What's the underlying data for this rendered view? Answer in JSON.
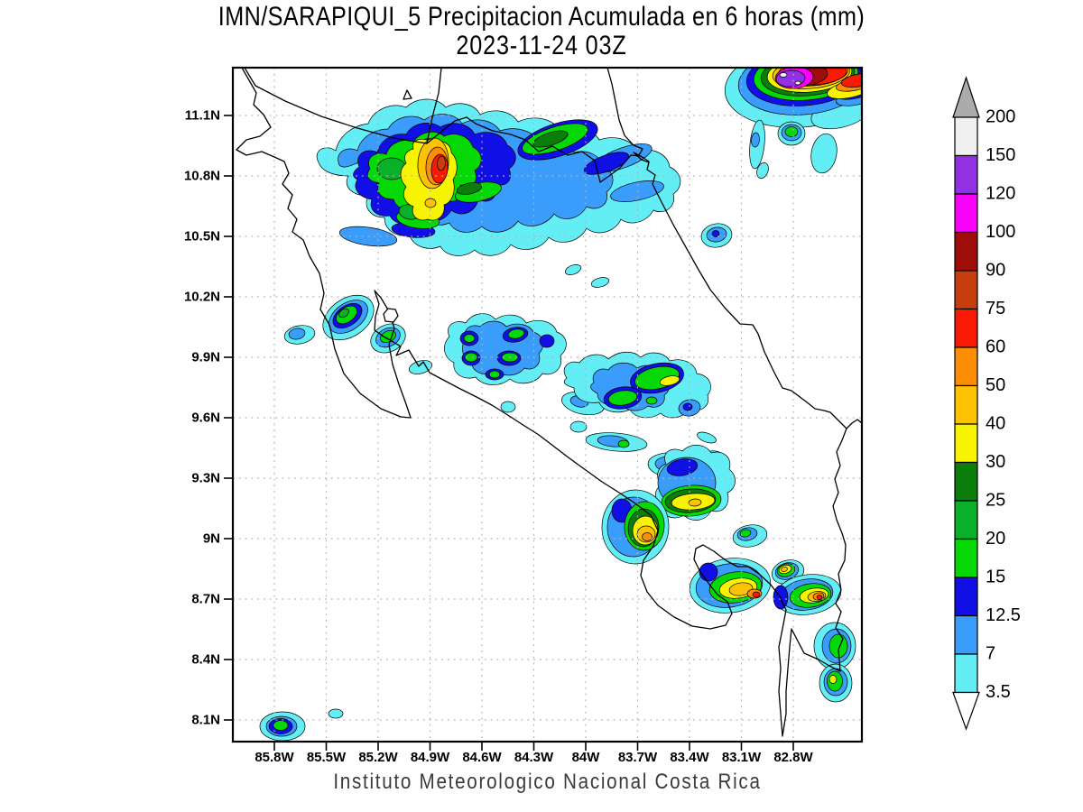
{
  "title": {
    "line1": "IMN/SARAPIQUI_5 Precipitacion Acumulada en 6 horas (mm)",
    "line2": "2023-11-24 03Z"
  },
  "caption": "Instituto Meteorologico Nacional Costa Rica",
  "axes": {
    "lat_labels_top_to_bottom": [
      "11.1N",
      "10.8N",
      "10.5N",
      "10.2N",
      "9.9N",
      "9.6N",
      "9.3N",
      "9N",
      "8.7N",
      "8.4N",
      "8.1N"
    ],
    "lon_labels_left_to_right": [
      "85.8W",
      "85.5W",
      "85.2W",
      "84.9W",
      "84.6W",
      "84.3W",
      "84W",
      "83.7W",
      "83.4W",
      "83.1W",
      "82.8W"
    ]
  },
  "colorbar": {
    "boundary_labels_top_to_bottom": [
      "200",
      "150",
      "120",
      "100",
      "90",
      "75",
      "60",
      "50",
      "40",
      "30",
      "25",
      "20",
      "15",
      "12.5",
      "7",
      "3.5"
    ],
    "segment_colors_top_to_bottom": [
      "#f0f0f0",
      "#9131e3",
      "#f902f9",
      "#9e0d08",
      "#c63d0e",
      "#fa1903",
      "#fd8d03",
      "#fdc303",
      "#f7f303",
      "#0a7d0a",
      "#0aaf2a",
      "#06d806",
      "#0f0fe6",
      "#3b9dfb",
      "#63eef5"
    ],
    "above_max_arrow_color": "#ababab",
    "below_min_arrow_color": "#ffffff"
  },
  "palette_mm_to_color": {
    "3.5": "#63eef5",
    "7": "#3b9dfb",
    "12.5": "#0f0fe6",
    "15": "#06d806",
    "20": "#0aaf2a",
    "25": "#0a7d0a",
    "30": "#f7f303",
    "40": "#fdc303",
    "50": "#fd8d03",
    "60": "#fa1903",
    "75": "#c63d0e",
    "90": "#9e0d08",
    "100": "#f902f9",
    "120": "#9131e3",
    "150": "#f0f0f0"
  },
  "map": {
    "grid_color": "#b3b3b3",
    "outline_color": "#000000",
    "background": "#ffffff"
  },
  "chart_data": {
    "type": "heatmap",
    "subtype": "filled-contour precipitation map",
    "source_label": "IMN/SARAPIQUI_5",
    "variable": "Precipitacion Acumulada en 6 horas (mm)",
    "valid_time": "2023-11-24 03Z",
    "region": "Costa Rica",
    "lon_ticks": [
      "85.8W",
      "85.5W",
      "85.2W",
      "84.9W",
      "84.6W",
      "84.3W",
      "84W",
      "83.7W",
      "83.4W",
      "83.1W",
      "82.8W"
    ],
    "lat_ticks": [
      "11.1N",
      "10.8N",
      "10.5N",
      "10.2N",
      "9.9N",
      "9.6N",
      "9.3N",
      "9N",
      "8.7N",
      "8.4N",
      "8.1N"
    ],
    "contour_levels_mm": [
      3.5,
      7,
      12.5,
      15,
      20,
      25,
      30,
      40,
      50,
      60,
      75,
      90,
      100,
      120,
      150,
      200
    ],
    "grid": "dotted",
    "legend_position": "right vertical colorbar with above/below range arrows",
    "storm_cells": [
      {
        "approx_lat": "10.85N",
        "approx_lon": "84.9W",
        "peak_mm": "75-90"
      },
      {
        "approx_lat": "11.3N",
        "approx_lon": "82.95W",
        "peak_mm": "150-200"
      },
      {
        "approx_lat": "10.1N",
        "approx_lon": "85.35W",
        "peak_mm": "20-25"
      },
      {
        "approx_lat": "9.9N",
        "approx_lon": "84.7W",
        "peak_mm": "20-25"
      },
      {
        "approx_lat": "9.8N",
        "approx_lon": "83.7W",
        "peak_mm": "40-50"
      },
      {
        "approx_lat": "9.35N",
        "approx_lon": "83.55W",
        "peak_mm": "40-50"
      },
      {
        "approx_lat": "9.0N",
        "approx_lon": "83.75W",
        "peak_mm": "50-60"
      },
      {
        "approx_lat": "8.75N",
        "approx_lon": "83.35W",
        "peak_mm": "60-75"
      },
      {
        "approx_lat": "8.7N",
        "approx_lon": "82.95W",
        "peak_mm": "60-75"
      },
      {
        "approx_lat": "8.05N",
        "approx_lon": "85.65W",
        "peak_mm": "15-20"
      }
    ]
  }
}
